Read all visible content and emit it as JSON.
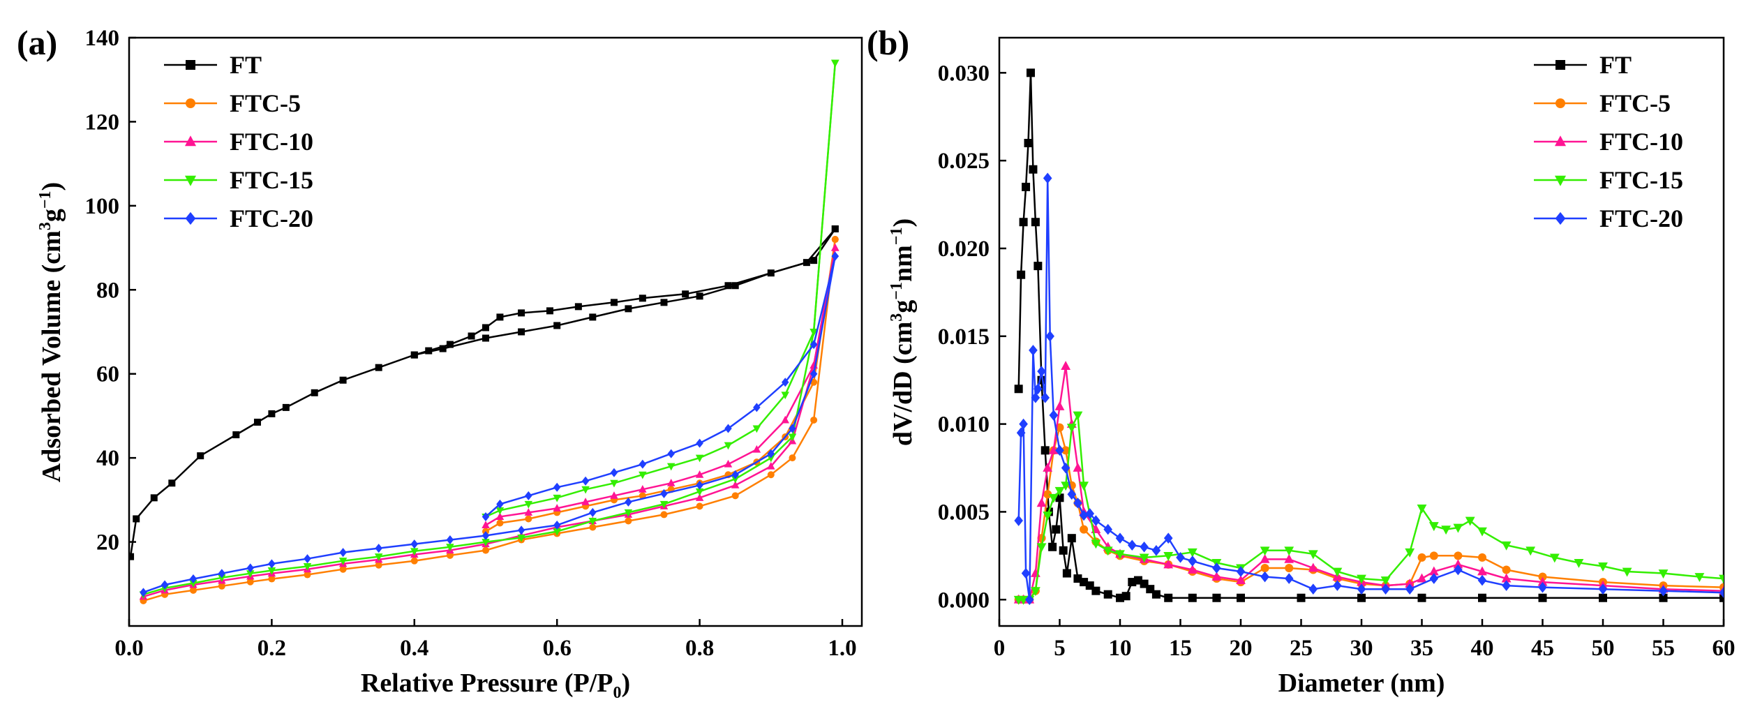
{
  "chart_data": [
    {
      "type": "line",
      "panel_label": "(a)",
      "title": "",
      "xlabel": "Relative Pressure (P/P",
      "xlabel_sub": "0",
      "xlabel_tail": ")",
      "ylabel": "Adsorbed Volume (cm",
      "ylabel_sup1": "3",
      "ylabel_mid": "g",
      "ylabel_sup2": "−1",
      "ylabel_tail": ")",
      "xlim": [
        0.0,
        1.0
      ],
      "ylim": [
        0,
        140
      ],
      "x_ticks": [
        0.0,
        0.2,
        0.4,
        0.6,
        0.8,
        1.0
      ],
      "x_tick_labels": [
        "0.0",
        "0.2",
        "0.4",
        "0.6",
        "0.8",
        "1.0"
      ],
      "y_ticks": [
        20,
        40,
        60,
        80,
        100,
        120,
        140
      ],
      "y_tick_labels": [
        "20",
        "40",
        "60",
        "80",
        "100",
        "120",
        "140"
      ],
      "grid": false,
      "legend_position": "top-left",
      "series": [
        {
          "name": "FT",
          "color": "#000000",
          "marker": "square",
          "adsorption": {
            "x": [
              0.002,
              0.01,
              0.035,
              0.06,
              0.1,
              0.15,
              0.18,
              0.2,
              0.22,
              0.26,
              0.3,
              0.35,
              0.4,
              0.44,
              0.5,
              0.55,
              0.6,
              0.65,
              0.7,
              0.75,
              0.8,
              0.85,
              0.9,
              0.95,
              0.99
            ],
            "y": [
              16.5,
              25.5,
              30.5,
              34,
              40.5,
              45.5,
              48.5,
              50.5,
              52,
              55.5,
              58.5,
              61.5,
              64.5,
              66,
              68.5,
              70,
              71.5,
              73.5,
              75.5,
              77,
              78.5,
              81,
              84,
              86.5,
              94.5
            ]
          },
          "desorption": {
            "x": [
              0.99,
              0.96,
              0.84,
              0.78,
              0.72,
              0.68,
              0.63,
              0.59,
              0.55,
              0.52,
              0.5,
              0.48,
              0.45,
              0.42,
              0.4
            ],
            "y": [
              94.5,
              87,
              81,
              79,
              78,
              77,
              76,
              75,
              74.5,
              73.5,
              71,
              69,
              67,
              65.5,
              64.5
            ]
          }
        },
        {
          "name": "FTC-5",
          "color": "#ff7f00",
          "marker": "circle",
          "adsorption": {
            "x": [
              0.02,
              0.05,
              0.09,
              0.13,
              0.17,
              0.2,
              0.25,
              0.3,
              0.35,
              0.4,
              0.45,
              0.5,
              0.55,
              0.6,
              0.65,
              0.7,
              0.75,
              0.8,
              0.85,
              0.9,
              0.93,
              0.96,
              0.99
            ],
            "y": [
              6,
              7.5,
              8.5,
              9.5,
              10.5,
              11.2,
              12.2,
              13.5,
              14.5,
              15.5,
              16.8,
              18,
              20.5,
              22,
              23.5,
              25,
              26.5,
              28.5,
              31,
              36,
              40,
              49,
              92
            ]
          },
          "desorption": {
            "x": [
              0.99,
              0.96,
              0.92,
              0.88,
              0.84,
              0.8,
              0.76,
              0.72,
              0.68,
              0.64,
              0.6,
              0.56,
              0.52,
              0.5
            ],
            "y": [
              92,
              58,
              45,
              39,
              36,
              34,
              32.5,
              31,
              30,
              28.5,
              27,
              25.5,
              24.5,
              22.5
            ]
          }
        },
        {
          "name": "FTC-10",
          "color": "#ff1493",
          "marker": "triangle-up",
          "adsorption": {
            "x": [
              0.02,
              0.05,
              0.09,
              0.13,
              0.17,
              0.2,
              0.25,
              0.3,
              0.35,
              0.4,
              0.45,
              0.5,
              0.55,
              0.6,
              0.65,
              0.7,
              0.75,
              0.8,
              0.85,
              0.9,
              0.93,
              0.96,
              0.99
            ],
            "y": [
              7,
              8.5,
              9.8,
              10.8,
              11.8,
              12.5,
              13.5,
              14.8,
              15.8,
              17,
              18,
              19.5,
              21.5,
              23.5,
              25,
              26.5,
              28.5,
              30.5,
              33.5,
              38,
              44,
              62,
              90
            ]
          },
          "desorption": {
            "x": [
              0.99,
              0.96,
              0.92,
              0.88,
              0.84,
              0.8,
              0.76,
              0.72,
              0.68,
              0.64,
              0.6,
              0.56,
              0.52,
              0.5
            ],
            "y": [
              90,
              62,
              49,
              42,
              38.5,
              36,
              34,
              32.5,
              31,
              29.5,
              28,
              27,
              26,
              24
            ]
          }
        },
        {
          "name": "FTC-15",
          "color": "#33ee00",
          "marker": "triangle-down",
          "adsorption": {
            "x": [
              0.02,
              0.05,
              0.09,
              0.13,
              0.17,
              0.2,
              0.25,
              0.3,
              0.35,
              0.4,
              0.45,
              0.5,
              0.55,
              0.6,
              0.65,
              0.7,
              0.75,
              0.8,
              0.85,
              0.9,
              0.93,
              0.96,
              0.99
            ],
            "y": [
              7.5,
              9,
              10.2,
              11.5,
              12.5,
              13.2,
              14.2,
              15.5,
              16.5,
              17.8,
              18.8,
              20,
              21,
              22.5,
              25,
              27,
              29,
              32,
              35,
              40,
              45,
              70,
              134
            ]
          },
          "desorption": {
            "x": [
              0.99,
              0.96,
              0.92,
              0.88,
              0.84,
              0.8,
              0.76,
              0.72,
              0.68,
              0.64,
              0.6,
              0.56,
              0.52,
              0.5
            ],
            "y": [
              134,
              70,
              55,
              47,
              43,
              40,
              38,
              36,
              34,
              32.5,
              30.5,
              29,
              27.5,
              26
            ]
          }
        },
        {
          "name": "FTC-20",
          "color": "#1f3fff",
          "marker": "diamond",
          "adsorption": {
            "x": [
              0.02,
              0.05,
              0.09,
              0.13,
              0.17,
              0.2,
              0.25,
              0.3,
              0.35,
              0.4,
              0.45,
              0.5,
              0.55,
              0.6,
              0.65,
              0.7,
              0.75,
              0.8,
              0.85,
              0.9,
              0.93,
              0.96,
              0.99
            ],
            "y": [
              8,
              9.8,
              11.2,
              12.5,
              13.8,
              14.8,
              16,
              17.5,
              18.5,
              19.5,
              20.5,
              21.5,
              22.8,
              24,
              27,
              29.5,
              31.5,
              33.5,
              36,
              41,
              47,
              60,
              88
            ]
          },
          "desorption": {
            "x": [
              0.99,
              0.96,
              0.92,
              0.88,
              0.84,
              0.8,
              0.76,
              0.72,
              0.68,
              0.64,
              0.6,
              0.56,
              0.52,
              0.5
            ],
            "y": [
              88,
              67,
              58,
              52,
              47,
              43.5,
              41,
              38.5,
              36.5,
              34.5,
              33,
              31,
              29,
              26
            ]
          }
        }
      ]
    },
    {
      "type": "line",
      "panel_label": "(b)",
      "title": "",
      "xlabel": "Diameter (nm)",
      "ylabel": "dV/dD (cm",
      "ylabel_sup1": "3",
      "ylabel_mid": "g",
      "ylabel_sup2": "−1",
      "ylabel_mid2": "nm",
      "ylabel_sup3": "−1",
      "ylabel_tail": ")",
      "xlim": [
        0,
        60
      ],
      "ylim": [
        -0.0015,
        0.032
      ],
      "x_ticks": [
        0,
        5,
        10,
        15,
        20,
        25,
        30,
        35,
        40,
        45,
        50,
        55,
        60
      ],
      "x_tick_labels": [
        "0",
        "5",
        "10",
        "15",
        "20",
        "25",
        "30",
        "35",
        "40",
        "45",
        "50",
        "55",
        "60"
      ],
      "y_ticks": [
        0.0,
        0.005,
        0.01,
        0.015,
        0.02,
        0.025,
        0.03
      ],
      "y_tick_labels": [
        "0.000",
        "0.005",
        "0.010",
        "0.015",
        "0.020",
        "0.025",
        "0.030"
      ],
      "grid": false,
      "legend_position": "top-right",
      "series": [
        {
          "name": "FT",
          "color": "#000000",
          "marker": "square",
          "x": [
            1.6,
            1.8,
            2.0,
            2.2,
            2.4,
            2.6,
            2.8,
            3.0,
            3.2,
            3.5,
            3.8,
            4.1,
            4.4,
            4.7,
            5.0,
            5.3,
            5.6,
            6.0,
            6.5,
            7.0,
            7.5,
            8.0,
            9.0,
            10.0,
            10.5,
            11.0,
            11.5,
            12.0,
            12.5,
            13.0,
            14.0,
            16.0,
            18.0,
            20.0,
            25.0,
            30.0,
            35.0,
            40.0,
            45.0,
            50.0,
            55.0,
            60.0
          ],
          "y": [
            0.012,
            0.0185,
            0.0215,
            0.0235,
            0.026,
            0.03,
            0.0245,
            0.0215,
            0.019,
            0.0125,
            0.0085,
            0.005,
            0.003,
            0.004,
            0.0058,
            0.0028,
            0.0015,
            0.0035,
            0.0012,
            0.001,
            0.0008,
            0.0005,
            0.0003,
            0.0001,
            0.0002,
            0.001,
            0.0011,
            0.0009,
            0.0006,
            0.0003,
            0.0001,
            0.0001,
            0.0001,
            0.0001,
            0.0001,
            0.0001,
            0.0001,
            0.0001,
            0.0001,
            0.0001,
            0.0001,
            0.0001
          ]
        },
        {
          "name": "FTC-5",
          "color": "#ff7f00",
          "marker": "circle",
          "x": [
            1.6,
            2.0,
            2.5,
            3.0,
            3.5,
            4.0,
            4.5,
            5.0,
            5.5,
            6.0,
            6.5,
            7.0,
            8.0,
            9.0,
            10.0,
            12.0,
            14.0,
            16.0,
            18.0,
            20.0,
            22.0,
            24.0,
            26.0,
            28.0,
            30.0,
            32.0,
            34.0,
            35.0,
            36.0,
            38.0,
            40.0,
            42.0,
            45.0,
            50.0,
            55.0,
            60.0
          ],
          "y": [
            0.0,
            0.0,
            0.0,
            0.0005,
            0.0035,
            0.006,
            0.0085,
            0.0098,
            0.0085,
            0.0065,
            0.0055,
            0.004,
            0.0033,
            0.0028,
            0.0025,
            0.0022,
            0.002,
            0.0016,
            0.0012,
            0.001,
            0.0018,
            0.0018,
            0.0017,
            0.0012,
            0.0009,
            0.0008,
            0.0009,
            0.0024,
            0.0025,
            0.0025,
            0.0024,
            0.0017,
            0.0013,
            0.001,
            0.0008,
            0.0007
          ]
        },
        {
          "name": "FTC-10",
          "color": "#ff1493",
          "marker": "triangle-up",
          "x": [
            1.6,
            2.0,
            2.5,
            3.0,
            3.5,
            4.0,
            4.5,
            5.0,
            5.5,
            6.0,
            6.5,
            7.0,
            8.0,
            9.0,
            10.0,
            12.0,
            14.0,
            16.0,
            18.0,
            20.0,
            22.0,
            24.0,
            26.0,
            28.0,
            30.0,
            32.0,
            34.0,
            35.0,
            36.0,
            38.0,
            40.0,
            42.0,
            45.0,
            50.0,
            55.0,
            60.0
          ],
          "y": [
            0.0,
            0.0,
            0.0,
            0.0015,
            0.0055,
            0.0075,
            0.0085,
            0.011,
            0.0133,
            0.01,
            0.0075,
            0.005,
            0.004,
            0.003,
            0.0026,
            0.0023,
            0.002,
            0.0017,
            0.0013,
            0.0011,
            0.0023,
            0.0023,
            0.0018,
            0.0013,
            0.001,
            0.0008,
            0.0009,
            0.0012,
            0.0016,
            0.002,
            0.0016,
            0.0012,
            0.001,
            0.0008,
            0.0006,
            0.0005
          ]
        },
        {
          "name": "FTC-15",
          "color": "#33ee00",
          "marker": "triangle-down",
          "x": [
            1.6,
            2.0,
            2.5,
            3.0,
            3.5,
            4.0,
            4.5,
            5.0,
            5.5,
            6.0,
            6.5,
            7.0,
            8.0,
            9.0,
            10.0,
            12.0,
            14.0,
            16.0,
            18.0,
            20.0,
            22.0,
            24.0,
            26.0,
            28.0,
            30.0,
            32.0,
            34.0,
            35.0,
            36.0,
            37.0,
            38.0,
            39.0,
            40.0,
            42.0,
            44.0,
            46.0,
            48.0,
            50.0,
            52.0,
            55.0,
            58.0,
            60.0
          ],
          "y": [
            0.0,
            0.0,
            0.0,
            0.0005,
            0.003,
            0.0048,
            0.0058,
            0.0062,
            0.0065,
            0.0098,
            0.0105,
            0.0065,
            0.0032,
            0.0028,
            0.0026,
            0.0024,
            0.0025,
            0.0027,
            0.0021,
            0.0018,
            0.0028,
            0.0028,
            0.0026,
            0.0016,
            0.0012,
            0.0011,
            0.0027,
            0.0052,
            0.0042,
            0.004,
            0.0041,
            0.0045,
            0.0039,
            0.0031,
            0.0028,
            0.0024,
            0.0021,
            0.0019,
            0.0016,
            0.0015,
            0.0013,
            0.0012
          ]
        },
        {
          "name": "FTC-20",
          "color": "#1f3fff",
          "marker": "diamond",
          "x": [
            1.6,
            1.8,
            2.0,
            2.2,
            2.5,
            2.8,
            3.0,
            3.2,
            3.5,
            3.8,
            4.0,
            4.2,
            4.5,
            5.0,
            5.5,
            6.0,
            6.5,
            7.0,
            7.5,
            8.0,
            9.0,
            10.0,
            11.0,
            12.0,
            13.0,
            14.0,
            15.0,
            16.0,
            18.0,
            20.0,
            22.0,
            24.0,
            26.0,
            28.0,
            30.0,
            32.0,
            34.0,
            36.0,
            38.0,
            40.0,
            42.0,
            45.0,
            50.0,
            55.0,
            60.0
          ],
          "y": [
            0.0045,
            0.0095,
            0.01,
            0.0015,
            0.0,
            0.0142,
            0.0115,
            0.012,
            0.013,
            0.0115,
            0.024,
            0.015,
            0.0105,
            0.0085,
            0.0075,
            0.006,
            0.0055,
            0.0048,
            0.0049,
            0.0045,
            0.004,
            0.0035,
            0.0031,
            0.003,
            0.0028,
            0.0035,
            0.0024,
            0.0022,
            0.0018,
            0.0016,
            0.0013,
            0.0012,
            0.0006,
            0.0008,
            0.0006,
            0.0006,
            0.0006,
            0.0012,
            0.0017,
            0.0011,
            0.0008,
            0.0007,
            0.0006,
            0.0005,
            0.0004
          ]
        }
      ]
    }
  ]
}
